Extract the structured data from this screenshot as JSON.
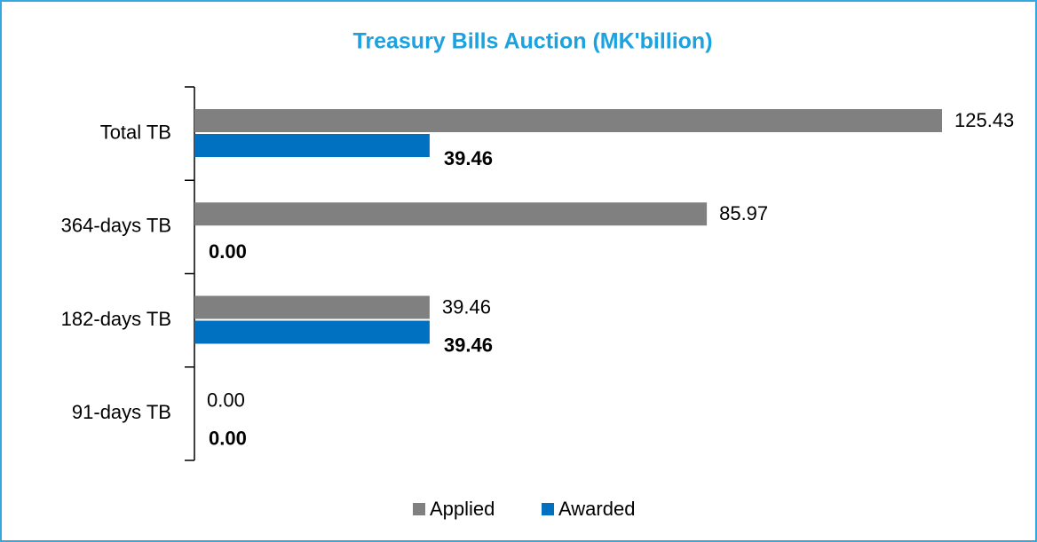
{
  "chart_data": {
    "type": "bar",
    "orientation": "horizontal",
    "title": "Treasury Bills Auction (MK'billion)",
    "categories": [
      "Total TB",
      "364-days TB",
      "182-days TB",
      "91-days TB"
    ],
    "series": [
      {
        "name": "Applied",
        "color": "#808080",
        "values": [
          125.43,
          85.97,
          39.46,
          0
        ],
        "value_labels": [
          "125.43",
          "85.97",
          "39.46",
          "0.00"
        ]
      },
      {
        "name": "Awarded",
        "color": "#0070c0",
        "values": [
          39.46,
          0,
          39.46,
          0
        ],
        "value_labels": [
          "39.46",
          "0.00",
          "39.46",
          "0.00"
        ]
      }
    ],
    "legend": "bottom"
  }
}
